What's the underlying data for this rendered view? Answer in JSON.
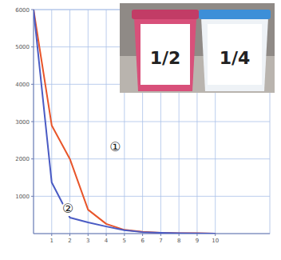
{
  "chart_data": {
    "type": "line",
    "x": [
      0,
      1,
      2,
      3,
      4,
      5,
      6,
      7,
      8,
      9,
      10
    ],
    "series": [
      {
        "name": "①",
        "color": "#e8552a",
        "values": [
          6000,
          2900,
          2000,
          640,
          260,
          100,
          50,
          20,
          10,
          10,
          0
        ]
      },
      {
        "name": "②",
        "color": "#4a5bc4",
        "values": [
          6000,
          1370,
          430,
          300,
          190,
          90,
          40,
          20,
          10,
          5,
          0
        ]
      }
    ],
    "xlim": [
      0,
      13
    ],
    "xticks": [
      1,
      2,
      3,
      4,
      5,
      6,
      7,
      8,
      9,
      10
    ],
    "ylim": [
      0,
      6000
    ],
    "yticks": [
      1000,
      2000,
      3000,
      4000,
      5000,
      6000
    ],
    "grid": true,
    "image_labels": [
      "1/2",
      "1/4"
    ]
  }
}
